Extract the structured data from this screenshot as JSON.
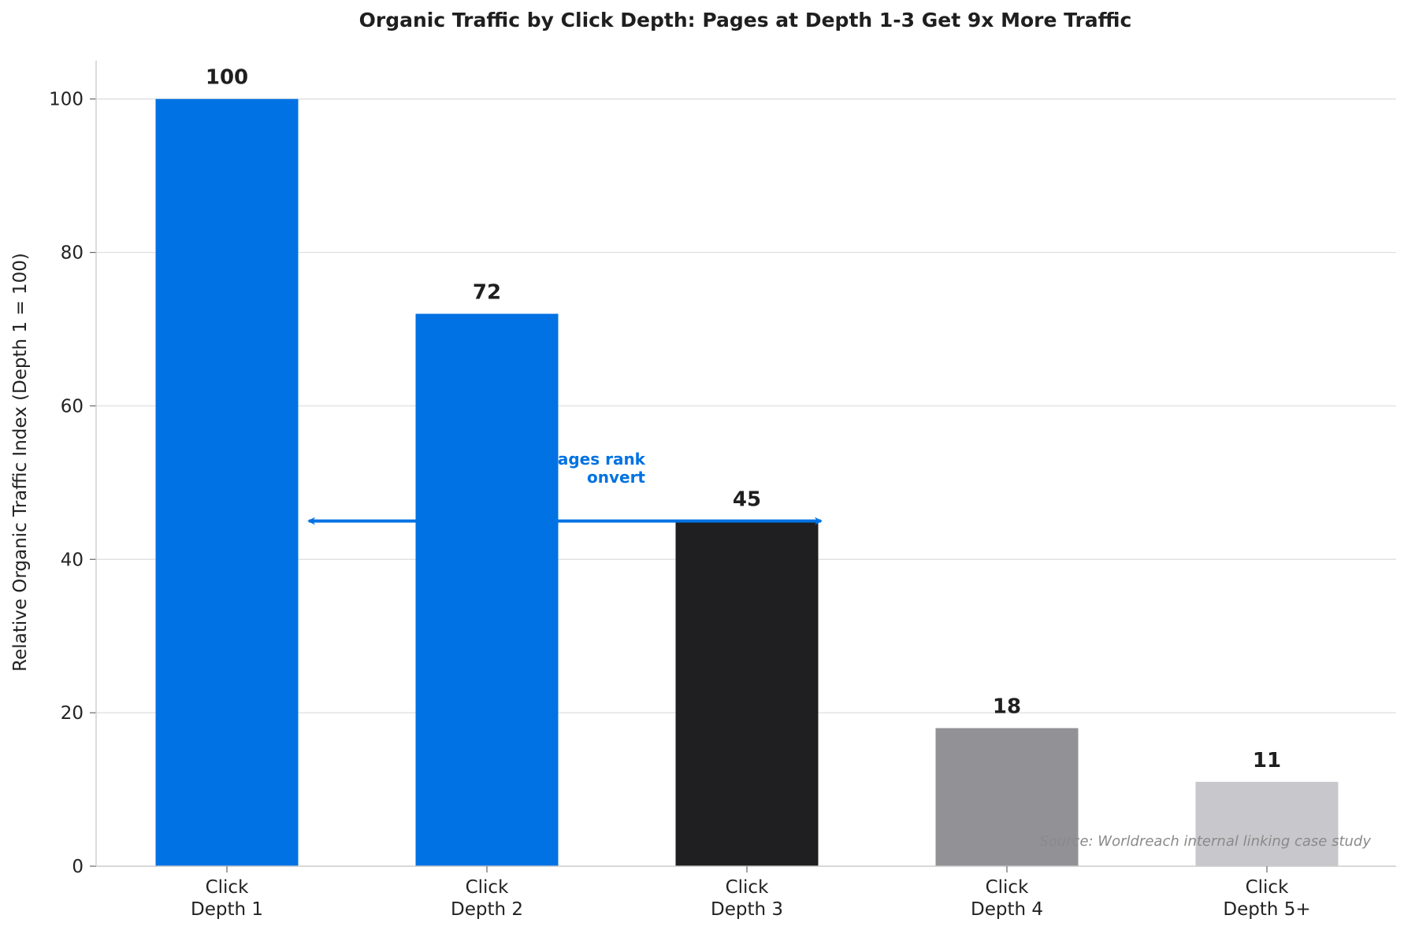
{
  "chart_data": {
    "type": "bar",
    "title": "Organic Traffic by Click Depth: Pages at Depth 1-3 Get 9x More Traffic",
    "xlabel": "",
    "ylabel": "Relative Organic Traffic Index (Depth 1 = 100)",
    "categories": [
      [
        "Click",
        "Depth 1"
      ],
      [
        "Click",
        "Depth 2"
      ],
      [
        "Click",
        "Depth 3"
      ],
      [
        "Click",
        "Depth 4"
      ],
      [
        "Click",
        "Depth 5+"
      ]
    ],
    "values": [
      100,
      72,
      45,
      18,
      11
    ],
    "value_labels": [
      "100",
      "72",
      "45",
      "18",
      "11"
    ],
    "bar_colors": [
      "#0072e3",
      "#0072e3",
      "#1f1f21",
      "#929296",
      "#c8c8cc"
    ],
    "ylim": [
      0,
      105
    ],
    "yticks": [
      0,
      20,
      40,
      60,
      80,
      100
    ],
    "grid": "horizontal",
    "annotation": {
      "lines": [
        "ages rank",
        "onvert"
      ],
      "color": "#0072e3",
      "arrow_from_category": 0,
      "arrow_to_category": 2,
      "arrow_y": 45
    },
    "source_note": "Source: Worldreach internal linking case study"
  }
}
